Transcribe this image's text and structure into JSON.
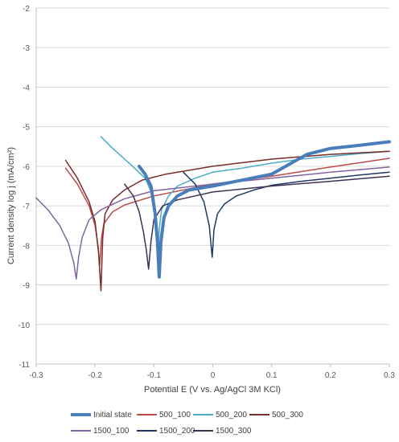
{
  "chart_data": {
    "type": "line",
    "xlabel": "Potential E (V vs. Ag/AgCl 3M KCl)",
    "ylabel": "Current density log j (mA/cm²)",
    "xlim": [
      -0.3,
      0.3
    ],
    "ylim": [
      -11,
      -2
    ],
    "x_ticks": [
      -0.3,
      -0.2,
      -0.1,
      0,
      0.1,
      0.2,
      0.3
    ],
    "y_ticks": [
      -2,
      -3,
      -4,
      -5,
      -6,
      -7,
      -8,
      -9,
      -10,
      -11
    ],
    "grid": "horizontal",
    "legend_position": "bottom",
    "series": [
      {
        "name": "Initial state",
        "color": "#4a7ebb",
        "width": 4,
        "points": [
          [
            -0.125,
            -6.0
          ],
          [
            -0.115,
            -6.2
          ],
          [
            -0.105,
            -6.5
          ],
          [
            -0.098,
            -7.2
          ],
          [
            -0.094,
            -7.9
          ],
          [
            -0.091,
            -8.8
          ],
          [
            -0.088,
            -7.9
          ],
          [
            -0.083,
            -7.3
          ],
          [
            -0.075,
            -7.0
          ],
          [
            -0.06,
            -6.75
          ],
          [
            -0.04,
            -6.6
          ],
          [
            0.0,
            -6.5
          ],
          [
            0.05,
            -6.35
          ],
          [
            0.1,
            -6.2
          ],
          [
            0.13,
            -5.95
          ],
          [
            0.16,
            -5.7
          ],
          [
            0.2,
            -5.55
          ],
          [
            0.25,
            -5.47
          ],
          [
            0.3,
            -5.38
          ]
        ]
      },
      {
        "name": "500_100",
        "color": "#be4b48",
        "width": 1.5,
        "points": [
          [
            -0.25,
            -6.05
          ],
          [
            -0.23,
            -6.45
          ],
          [
            -0.21,
            -7.0
          ],
          [
            -0.2,
            -7.5
          ],
          [
            -0.195,
            -8.0
          ],
          [
            -0.192,
            -8.5
          ],
          [
            -0.189,
            -7.8
          ],
          [
            -0.185,
            -7.45
          ],
          [
            -0.17,
            -7.15
          ],
          [
            -0.15,
            -6.98
          ],
          [
            -0.1,
            -6.75
          ],
          [
            0.0,
            -6.45
          ],
          [
            0.1,
            -6.25
          ],
          [
            0.2,
            -6.02
          ],
          [
            0.3,
            -5.8
          ]
        ]
      },
      {
        "name": "500_200",
        "color": "#4bacc6",
        "width": 1.5,
        "points": [
          [
            -0.19,
            -5.25
          ],
          [
            -0.17,
            -5.55
          ],
          [
            -0.14,
            -5.95
          ],
          [
            -0.115,
            -6.3
          ],
          [
            -0.1,
            -6.8
          ],
          [
            -0.095,
            -7.4
          ],
          [
            -0.093,
            -8.3
          ],
          [
            -0.091,
            -7.6
          ],
          [
            -0.087,
            -7.1
          ],
          [
            -0.075,
            -6.75
          ],
          [
            -0.06,
            -6.5
          ],
          [
            -0.03,
            -6.3
          ],
          [
            0.0,
            -6.15
          ],
          [
            0.05,
            -6.05
          ],
          [
            0.1,
            -5.92
          ],
          [
            0.15,
            -5.82
          ],
          [
            0.2,
            -5.75
          ],
          [
            0.25,
            -5.68
          ],
          [
            0.3,
            -5.62
          ]
        ]
      },
      {
        "name": "500_300",
        "color": "#772c2a",
        "width": 1.5,
        "points": [
          [
            -0.25,
            -5.85
          ],
          [
            -0.23,
            -6.3
          ],
          [
            -0.21,
            -6.9
          ],
          [
            -0.2,
            -7.4
          ],
          [
            -0.194,
            -8.2
          ],
          [
            -0.19,
            -9.15
          ],
          [
            -0.187,
            -7.8
          ],
          [
            -0.183,
            -7.2
          ],
          [
            -0.17,
            -6.85
          ],
          [
            -0.15,
            -6.6
          ],
          [
            -0.12,
            -6.35
          ],
          [
            -0.08,
            -6.2
          ],
          [
            0.0,
            -6.0
          ],
          [
            0.1,
            -5.82
          ],
          [
            0.2,
            -5.7
          ],
          [
            0.3,
            -5.62
          ]
        ]
      },
      {
        "name": "1500_100",
        "color": "#8064a2",
        "width": 1.5,
        "points": [
          [
            -0.3,
            -6.8
          ],
          [
            -0.28,
            -7.1
          ],
          [
            -0.26,
            -7.5
          ],
          [
            -0.245,
            -7.95
          ],
          [
            -0.236,
            -8.45
          ],
          [
            -0.232,
            -8.85
          ],
          [
            -0.228,
            -8.3
          ],
          [
            -0.222,
            -7.8
          ],
          [
            -0.21,
            -7.35
          ],
          [
            -0.19,
            -7.1
          ],
          [
            -0.15,
            -6.82
          ],
          [
            -0.1,
            -6.62
          ],
          [
            0.0,
            -6.45
          ],
          [
            0.1,
            -6.3
          ],
          [
            0.2,
            -6.15
          ],
          [
            0.3,
            -6.02
          ]
        ]
      },
      {
        "name": "1500_200",
        "color": "#1f3864",
        "width": 1.5,
        "points": [
          [
            -0.05,
            -6.15
          ],
          [
            -0.03,
            -6.45
          ],
          [
            -0.015,
            -6.9
          ],
          [
            -0.006,
            -7.5
          ],
          [
            -0.001,
            -8.3
          ],
          [
            0.002,
            -7.6
          ],
          [
            0.008,
            -7.2
          ],
          [
            0.02,
            -6.95
          ],
          [
            0.04,
            -6.75
          ],
          [
            0.07,
            -6.6
          ],
          [
            0.1,
            -6.48
          ],
          [
            0.15,
            -6.38
          ],
          [
            0.2,
            -6.3
          ],
          [
            0.25,
            -6.22
          ],
          [
            0.3,
            -6.15
          ]
        ]
      },
      {
        "name": "1500_300",
        "color": "#403151",
        "width": 1.5,
        "points": [
          [
            -0.15,
            -6.45
          ],
          [
            -0.135,
            -6.75
          ],
          [
            -0.125,
            -7.15
          ],
          [
            -0.118,
            -7.65
          ],
          [
            -0.113,
            -8.1
          ],
          [
            -0.109,
            -8.6
          ],
          [
            -0.105,
            -7.9
          ],
          [
            -0.1,
            -7.35
          ],
          [
            -0.085,
            -7.0
          ],
          [
            -0.06,
            -6.85
          ],
          [
            -0.03,
            -6.75
          ],
          [
            0.0,
            -6.65
          ],
          [
            0.1,
            -6.5
          ],
          [
            0.2,
            -6.38
          ],
          [
            0.3,
            -6.25
          ]
        ]
      }
    ]
  }
}
